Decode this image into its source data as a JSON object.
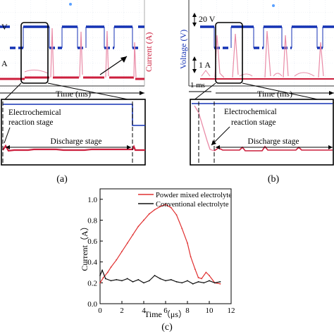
{
  "panel_a": {
    "voltage_marker": "V",
    "current_marker": "A",
    "current_axis_label": "Current (A)",
    "time_label": "Time (ms)",
    "stage1_label_line1": "Electrochemical",
    "stage1_label_line2": "reaction stage",
    "stage2_label": "Discharge stage",
    "caption": "(a)"
  },
  "panel_b": {
    "voltage_axis_label": "Voltage (V)",
    "voltage_scale": "20 V",
    "current_scale": "1 A",
    "time_scale": "1 ms",
    "time_label": "Time (ms)",
    "stage1_label_line1": "Electrochemical",
    "stage1_label_line2": "reaction stage",
    "stage2_label": "Discharge stage",
    "caption": "(b)"
  },
  "caption_c": "(c)",
  "colors": {
    "red": "#cc1e3c",
    "blue": "#1432b4",
    "pink": "#e98aa6",
    "grid": "#cfd7e6"
  },
  "chart_data": {
    "type": "line",
    "xlabel": "Time（μs）",
    "ylabel": "Current（A）",
    "xlim": [
      0,
      12
    ],
    "ylim": [
      0,
      1.1
    ],
    "x_ticks": [
      "0",
      "2",
      "4",
      "6",
      "8",
      "10",
      "12"
    ],
    "y_ticks": [
      "0.0",
      "0.2",
      "0.4",
      "0.6",
      "0.8",
      "1.0"
    ],
    "legend_position": "top-right",
    "series": [
      {
        "name": "Powder mixed electrolyte",
        "color": "#e03030",
        "x": [
          0,
          0.3,
          0.7,
          1.0,
          1.5,
          2.0,
          2.5,
          3.0,
          3.5,
          4.0,
          4.5,
          5.0,
          5.5,
          6.0,
          6.5,
          7.0,
          7.5,
          8.0,
          8.3,
          8.7,
          9.0,
          9.3,
          9.7,
          10.0,
          10.5,
          11.0
        ],
        "y": [
          0.2,
          0.25,
          0.3,
          0.35,
          0.42,
          0.5,
          0.58,
          0.66,
          0.74,
          0.8,
          0.86,
          0.9,
          0.93,
          0.95,
          0.92,
          0.85,
          0.72,
          0.58,
          0.45,
          0.33,
          0.25,
          0.24,
          0.3,
          0.27,
          0.2,
          0.19
        ]
      },
      {
        "name": "Conventional electrolyte",
        "color": "#111111",
        "x": [
          0,
          0.2,
          0.5,
          1.0,
          1.5,
          2.0,
          2.5,
          3.0,
          3.5,
          4.0,
          4.5,
          5.0,
          5.5,
          6.0,
          6.5,
          7.0,
          7.5,
          8.0,
          8.5,
          9.0,
          9.5,
          10.0,
          10.5,
          11.0
        ],
        "y": [
          0.27,
          0.32,
          0.24,
          0.22,
          0.23,
          0.22,
          0.24,
          0.21,
          0.23,
          0.2,
          0.22,
          0.27,
          0.24,
          0.22,
          0.23,
          0.21,
          0.2,
          0.22,
          0.19,
          0.21,
          0.2,
          0.22,
          0.2,
          0.21
        ]
      }
    ]
  }
}
